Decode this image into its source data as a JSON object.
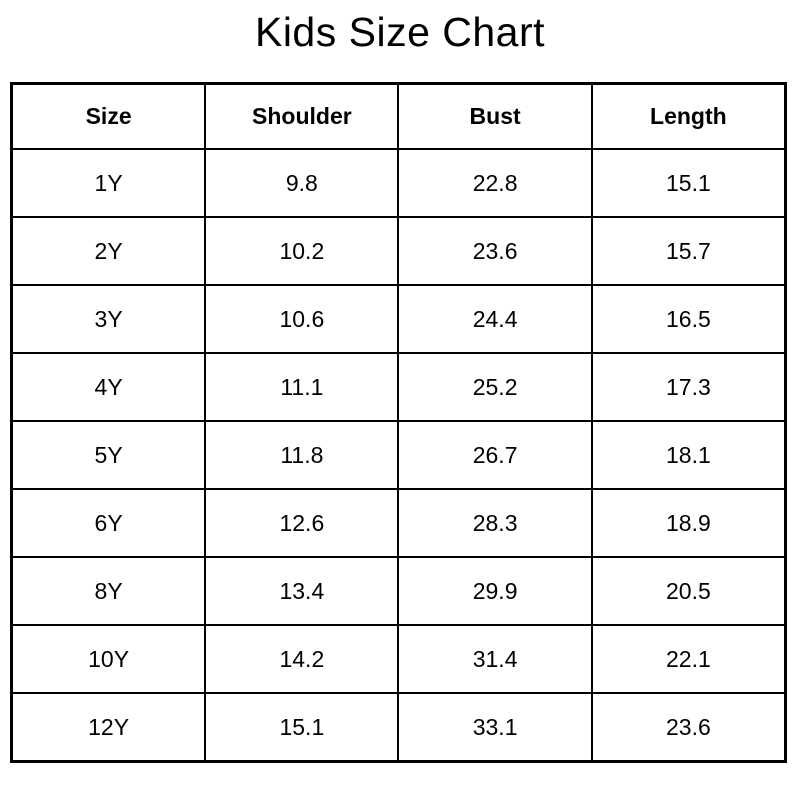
{
  "title": "Kids Size Chart",
  "chart_data": {
    "type": "table",
    "title": "Kids Size Chart",
    "columns": [
      "Size",
      "Shoulder",
      "Bust",
      "Length"
    ],
    "rows": [
      [
        "1Y",
        "9.8",
        "22.8",
        "15.1"
      ],
      [
        "2Y",
        "10.2",
        "23.6",
        "15.7"
      ],
      [
        "3Y",
        "10.6",
        "24.4",
        "16.5"
      ],
      [
        "4Y",
        "11.1",
        "25.2",
        "17.3"
      ],
      [
        "5Y",
        "11.8",
        "26.7",
        "18.1"
      ],
      [
        "6Y",
        "12.6",
        "28.3",
        "18.9"
      ],
      [
        "8Y",
        "13.4",
        "29.9",
        "20.5"
      ],
      [
        "10Y",
        "14.2",
        "31.4",
        "22.1"
      ],
      [
        "12Y",
        "15.1",
        "33.1",
        "23.6"
      ]
    ],
    "layout": {
      "background": "#ffffff",
      "border_color": "#000000",
      "text_color": "#000000",
      "alignment": "center"
    }
  }
}
